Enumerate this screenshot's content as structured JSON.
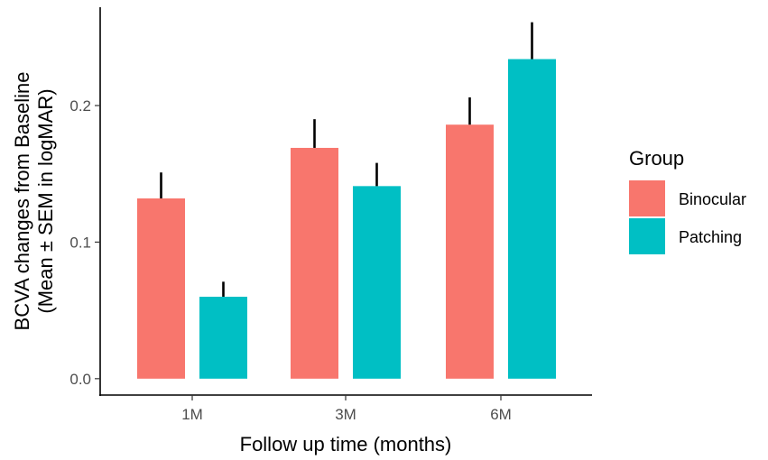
{
  "chart_data": {
    "type": "bar",
    "categories": [
      "1M",
      "3M",
      "6M"
    ],
    "series": [
      {
        "name": "Binocular",
        "values": [
          0.132,
          0.169,
          0.186
        ],
        "sem": [
          0.019,
          0.021,
          0.02
        ],
        "color": "#F8766D"
      },
      {
        "name": "Patching",
        "values": [
          0.06,
          0.141,
          0.234
        ],
        "sem": [
          0.011,
          0.017,
          0.027
        ],
        "color": "#00BFC4"
      }
    ],
    "xlabel": "Follow up time (months)",
    "ylabel": "BCVA changes from Baseline",
    "ylabel_line2": "(Mean ± SEM in logMAR)",
    "ylim": [
      -0.012,
      0.272
    ],
    "yticks": [
      0.0,
      0.1,
      0.2
    ],
    "ytick_labels": [
      "0.0",
      "0.1",
      "0.2"
    ],
    "legend": {
      "title": "Group",
      "position": "right"
    },
    "grid": false,
    "error_bars": "Mean ± SEM"
  }
}
